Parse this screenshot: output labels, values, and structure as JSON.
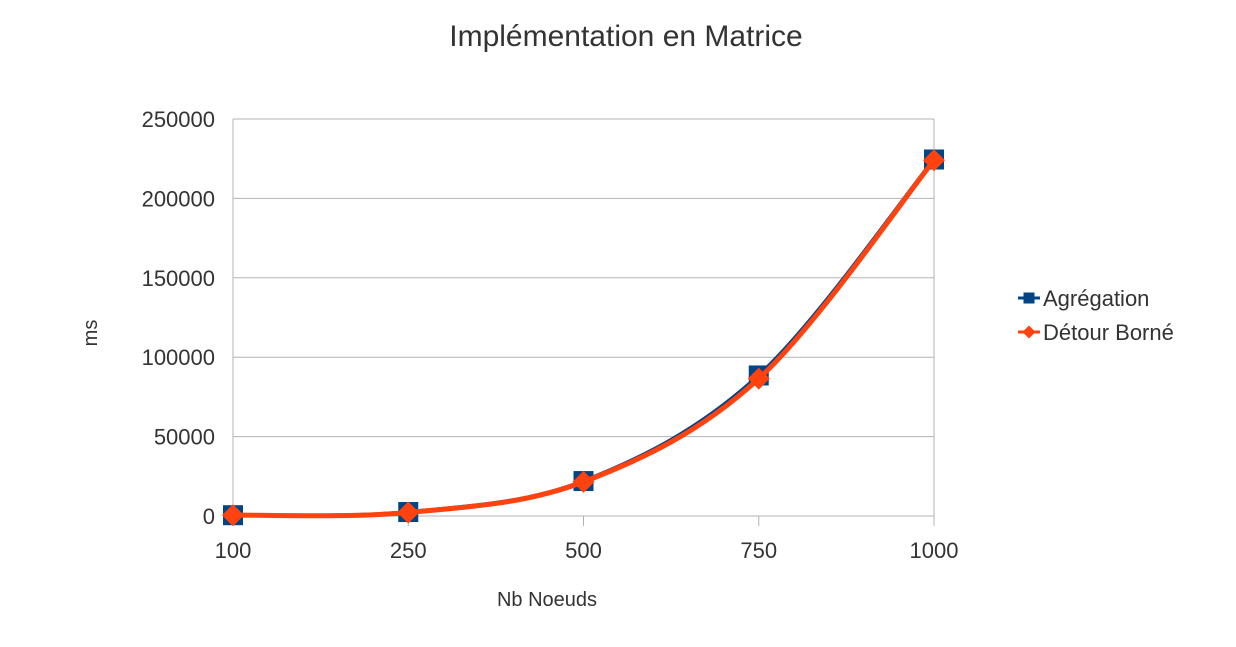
{
  "chart_data": {
    "type": "line",
    "title": "Implémentation en Matrice",
    "xlabel": "Nb Noeuds",
    "ylabel": "ms",
    "categories": [
      "100",
      "250",
      "500",
      "750",
      "1000"
    ],
    "ylim": [
      0,
      250000
    ],
    "yticks": [
      0,
      50000,
      100000,
      150000,
      200000,
      250000
    ],
    "grid": true,
    "legend": "right",
    "smooth": true,
    "series": [
      {
        "name": "Agrégation",
        "values": [
          500,
          2500,
          22000,
          88500,
          224500
        ],
        "color": "#004586",
        "marker": "square"
      },
      {
        "name": "Détour Borné",
        "values": [
          500,
          2200,
          21500,
          86500,
          224000
        ],
        "color": "#ff420e",
        "marker": "diamond"
      }
    ]
  }
}
